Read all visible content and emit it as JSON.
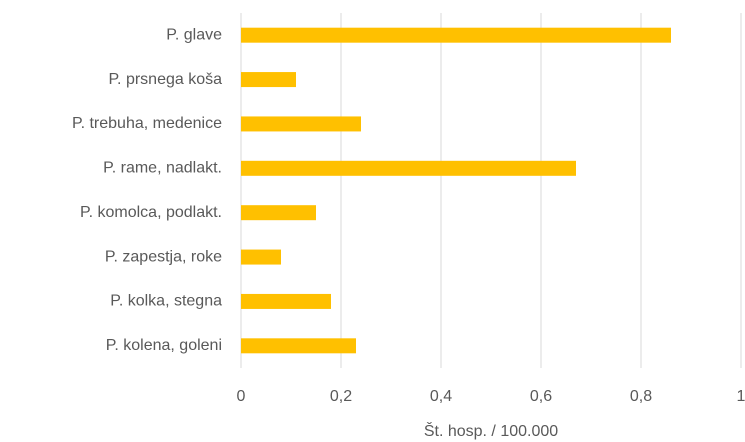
{
  "chart_data": {
    "type": "bar",
    "orientation": "horizontal",
    "x_label": "Št. hosp. / 100.000",
    "categories": [
      "P. glave",
      "P. prsnega koša",
      "P. trebuha, medenice",
      "P. rame, nadlakt.",
      "P. komolca, podlakt.",
      "P. zapestja, roke",
      "P. kolka, stegna",
      "P. kolena, goleni"
    ],
    "values": [
      0.86,
      0.11,
      0.24,
      0.67,
      0.15,
      0.08,
      0.18,
      0.23
    ],
    "color": "#ffc000",
    "xlim": [
      0,
      1
    ],
    "xticks": [
      0,
      {
        "value": 0.2,
        "label": "0,2"
      },
      {
        "value": 0.4,
        "label": "0,4"
      },
      {
        "value": 0.6,
        "label": "0,6"
      },
      {
        "value": 0.8,
        "label": "0,8"
      },
      1
    ],
    "grid": true
  }
}
